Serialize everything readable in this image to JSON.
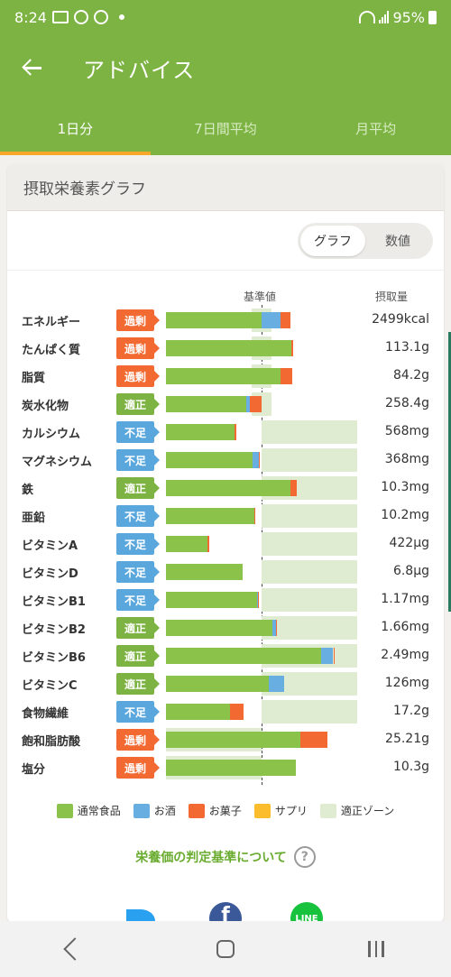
{
  "status": {
    "time": "8:24",
    "battery": "95%"
  },
  "appbar": {
    "title": "アドバイス"
  },
  "tabs": [
    {
      "label": "1日分",
      "active": true
    },
    {
      "label": "7日間平均",
      "active": false
    },
    {
      "label": "月平均",
      "active": false
    }
  ],
  "card": {
    "title": "摂取栄養素グラフ",
    "toggle": {
      "graph_label": "グラフ",
      "number_label": "数値",
      "selected": "graph"
    }
  },
  "chart_headers": {
    "reference": "基準値",
    "intake": "摂取量"
  },
  "colors": {
    "food": "#8bc34a",
    "alcohol": "#68aee0",
    "snack": "#f26a32",
    "supplement": "#fbbd2e",
    "zone": "#dfecd2",
    "over": "#f26a32",
    "ok": "#7cb342",
    "under": "#5aa7de"
  },
  "chart_data": {
    "type": "bar",
    "reference_percent": 100,
    "categories": [
      "エネルギー",
      "たんぱく質",
      "脂質",
      "炭水化物",
      "カルシウム",
      "マグネシウム",
      "鉄",
      "亜鉛",
      "ビタミンA",
      "ビタミンD",
      "ビタミンB1",
      "ビタミンB2",
      "ビタミンB6",
      "ビタミンC",
      "食物繊維",
      "飽和脂肪酸",
      "塩分"
    ],
    "rows": [
      {
        "name": "エネルギー",
        "status": "過剰",
        "status_type": "over",
        "value": "2499kcal",
        "food": 100,
        "alcohol": 20,
        "snack": 10,
        "supplement": 0,
        "zone": [
          90,
          110
        ]
      },
      {
        "name": "たんぱく質",
        "status": "過剰",
        "status_type": "over",
        "value": "113.1g",
        "food": 131,
        "alcohol": 0,
        "snack": 2,
        "supplement": 0,
        "zone": [
          90,
          110
        ]
      },
      {
        "name": "脂質",
        "status": "過剰",
        "status_type": "over",
        "value": "84.2g",
        "food": 120,
        "alcohol": 0,
        "snack": 12,
        "supplement": 0,
        "zone": [
          90,
          110
        ]
      },
      {
        "name": "炭水化物",
        "status": "適正",
        "status_type": "ok",
        "value": "258.4g",
        "food": 84,
        "alcohol": 4,
        "snack": 12,
        "supplement": 0,
        "zone": [
          90,
          110
        ]
      },
      {
        "name": "カルシウム",
        "status": "不足",
        "status_type": "under",
        "value": "568mg",
        "food": 72,
        "alcohol": 0,
        "snack": 2,
        "supplement": 0,
        "zone": [
          100,
          200
        ]
      },
      {
        "name": "マグネシウム",
        "status": "不足",
        "status_type": "under",
        "value": "368mg",
        "food": 91,
        "alcohol": 6,
        "snack": 1,
        "supplement": 0,
        "zone": [
          100,
          200
        ]
      },
      {
        "name": "鉄",
        "status": "適正",
        "status_type": "ok",
        "value": "10.3mg",
        "food": 130,
        "alcohol": 0,
        "snack": 7,
        "supplement": 0,
        "zone": [
          100,
          200
        ]
      },
      {
        "name": "亜鉛",
        "status": "不足",
        "status_type": "under",
        "value": "10.2mg",
        "food": 92,
        "alcohol": 0,
        "snack": 1,
        "supplement": 0,
        "zone": [
          100,
          200
        ]
      },
      {
        "name": "ビタミンA",
        "status": "不足",
        "status_type": "under",
        "value": "422μg",
        "food": 43,
        "alcohol": 0,
        "snack": 2,
        "supplement": 0,
        "zone": [
          100,
          200
        ]
      },
      {
        "name": "ビタミンD",
        "status": "不足",
        "status_type": "under",
        "value": "6.8μg",
        "food": 80,
        "alcohol": 0,
        "snack": 0,
        "supplement": 0,
        "zone": [
          100,
          200
        ]
      },
      {
        "name": "ビタミンB1",
        "status": "不足",
        "status_type": "under",
        "value": "1.17mg",
        "food": 95,
        "alcohol": 1,
        "snack": 1,
        "supplement": 0,
        "zone": [
          100,
          200
        ]
      },
      {
        "name": "ビタミンB2",
        "status": "適正",
        "status_type": "ok",
        "value": "1.66mg",
        "food": 111,
        "alcohol": 4,
        "snack": 1,
        "supplement": 0,
        "zone": [
          100,
          200
        ]
      },
      {
        "name": "ビタミンB6",
        "status": "適正",
        "status_type": "ok",
        "value": "2.49mg",
        "food": 162,
        "alcohol": 13,
        "snack": 1,
        "supplement": 0,
        "zone": [
          100,
          200
        ]
      },
      {
        "name": "ビタミンC",
        "status": "適正",
        "status_type": "ok",
        "value": "126mg",
        "food": 108,
        "alcohol": 16,
        "snack": 0,
        "supplement": 0,
        "zone": [
          100,
          200
        ]
      },
      {
        "name": "食物繊維",
        "status": "不足",
        "status_type": "under",
        "value": "17.2g",
        "food": 67,
        "alcohol": 0,
        "snack": 14,
        "supplement": 0,
        "zone": [
          100,
          200
        ]
      },
      {
        "name": "飽和脂肪酸",
        "status": "過剰",
        "status_type": "over",
        "value": "25.21g",
        "food": 141,
        "alcohol": 0,
        "snack": 28,
        "supplement": 0,
        "zone": [
          0,
          100
        ]
      },
      {
        "name": "塩分",
        "status": "過剰",
        "status_type": "over",
        "value": "10.3g",
        "food": 136,
        "alcohol": 0,
        "snack": 0,
        "supplement": 0,
        "zone": [
          0,
          100
        ]
      }
    ]
  },
  "legend": [
    {
      "label": "通常食品",
      "color": "#8bc34a"
    },
    {
      "label": "お酒",
      "color": "#68aee0"
    },
    {
      "label": "お菓子",
      "color": "#f26a32"
    },
    {
      "label": "サプリ",
      "color": "#fbbd2e"
    },
    {
      "label": "適正ゾーン",
      "color": "#dfecd2"
    }
  ],
  "criteria_link": "栄養価の判定基準について",
  "social": {
    "facebook_glyph": "f",
    "line_label": "LINE"
  }
}
